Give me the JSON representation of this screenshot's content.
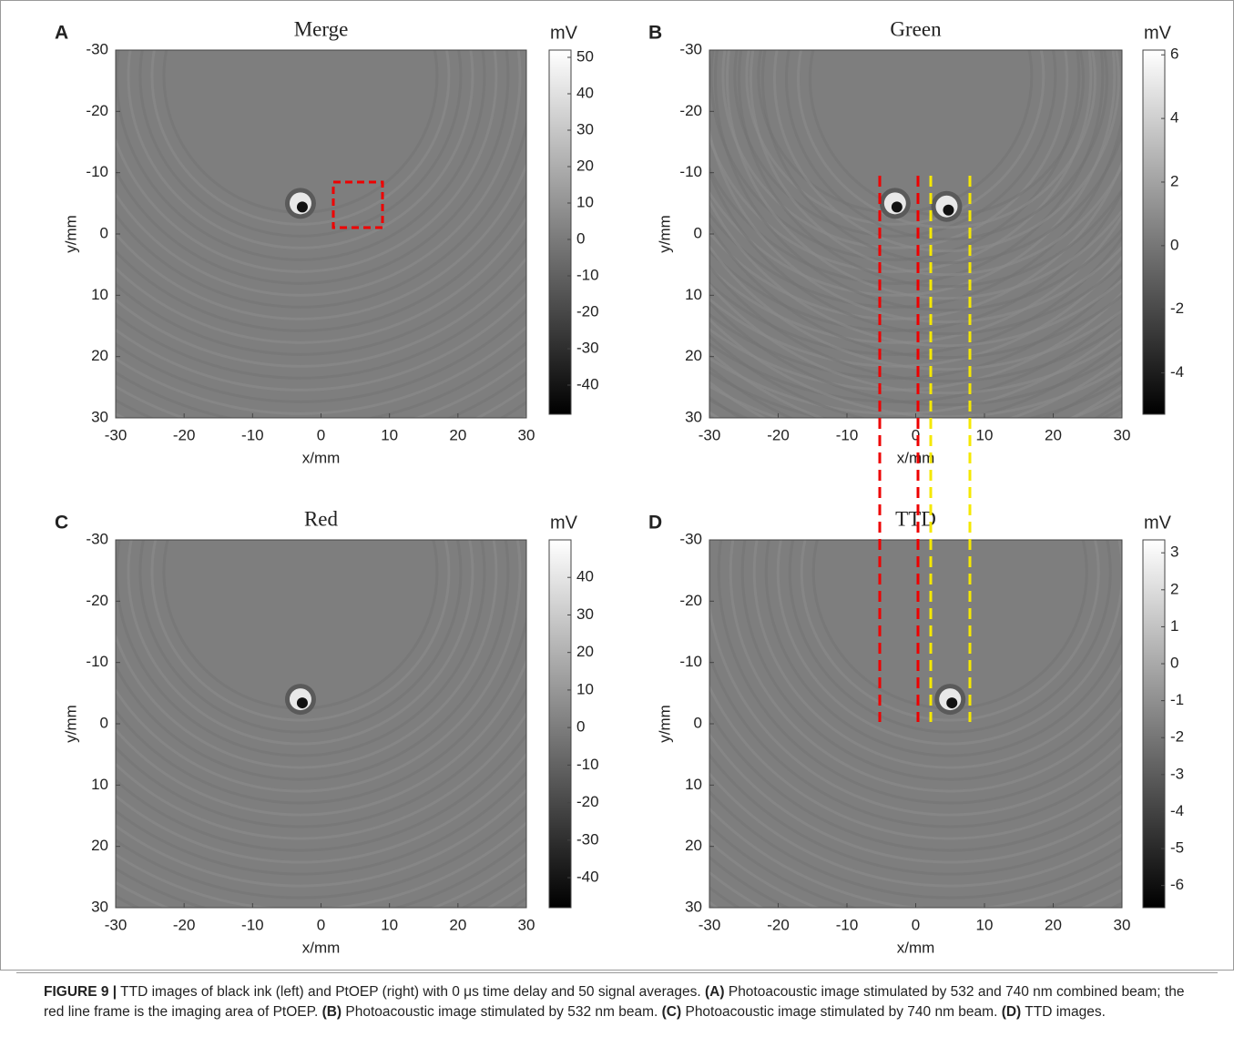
{
  "figure": {
    "panels": [
      {
        "letter": "A",
        "title": "Merge",
        "xlabel": "x/mm",
        "ylabel": "y/mm",
        "xlim": [
          -30,
          30
        ],
        "ylim": [
          -30,
          30
        ],
        "xticks": [
          -30,
          -20,
          -10,
          0,
          10,
          20,
          30
        ],
        "yticks": [
          -30,
          -20,
          -10,
          0,
          10,
          20,
          30
        ],
        "colorbar": {
          "label": "mV",
          "lim": [
            -48,
            52
          ],
          "ticks": [
            50,
            40,
            30,
            20,
            10,
            0,
            -10,
            -20,
            -30,
            -40
          ]
        }
      },
      {
        "letter": "B",
        "title": "Green",
        "xlabel": "x/mm",
        "ylabel": "y/mm",
        "xlim": [
          -30,
          30
        ],
        "ylim": [
          -30,
          30
        ],
        "xticks": [
          -30,
          -20,
          -10,
          0,
          10,
          20,
          30
        ],
        "yticks": [
          -30,
          -20,
          -10,
          0,
          10,
          20,
          30
        ],
        "colorbar": {
          "label": "mV",
          "lim": [
            -5.3,
            6.15
          ],
          "ticks": [
            6,
            4,
            2,
            0,
            -2,
            -4
          ]
        }
      },
      {
        "letter": "C",
        "title": "Red",
        "xlabel": "x/mm",
        "ylabel": "y/mm",
        "xlim": [
          -30,
          30
        ],
        "ylim": [
          -30,
          30
        ],
        "xticks": [
          -30,
          -20,
          -10,
          0,
          10,
          20,
          30
        ],
        "yticks": [
          -30,
          -20,
          -10,
          0,
          10,
          20,
          30
        ],
        "colorbar": {
          "label": "mV",
          "lim": [
            -48,
            50
          ],
          "ticks": [
            40,
            30,
            20,
            10,
            0,
            -10,
            -20,
            -30,
            -40
          ]
        }
      },
      {
        "letter": "D",
        "title": "TTD",
        "xlabel": "x/mm",
        "ylabel": "y/mm",
        "xlim": [
          -30,
          30
        ],
        "ylim": [
          -30,
          30
        ],
        "xticks": [
          -30,
          -20,
          -10,
          0,
          10,
          20,
          30
        ],
        "yticks": [
          -30,
          -20,
          -10,
          0,
          10,
          20,
          30
        ],
        "colorbar": {
          "label": "mV",
          "lim": [
            -6.6,
            3.35
          ],
          "ticks": [
            3,
            2,
            1,
            0,
            -1,
            -2,
            -3,
            -4,
            -5,
            -6
          ]
        }
      }
    ],
    "caption": [
      "FIGURE 9 |",
      " TTD images of black ink (left) and PtOEP (right) with 0 μs time delay and 50 signal averages. ",
      "(A)",
      " Photoacoustic image stimulated by 532 and 740 nm combined beam; the red line frame is the imaging area of PtOEP. ",
      "(B)",
      " Photoacoustic image stimulated by 532 nm beam. ",
      "(C)",
      " Photoacoustic image stimulated by 740 nm beam. ",
      "(D)",
      " TTD images."
    ]
  }
}
